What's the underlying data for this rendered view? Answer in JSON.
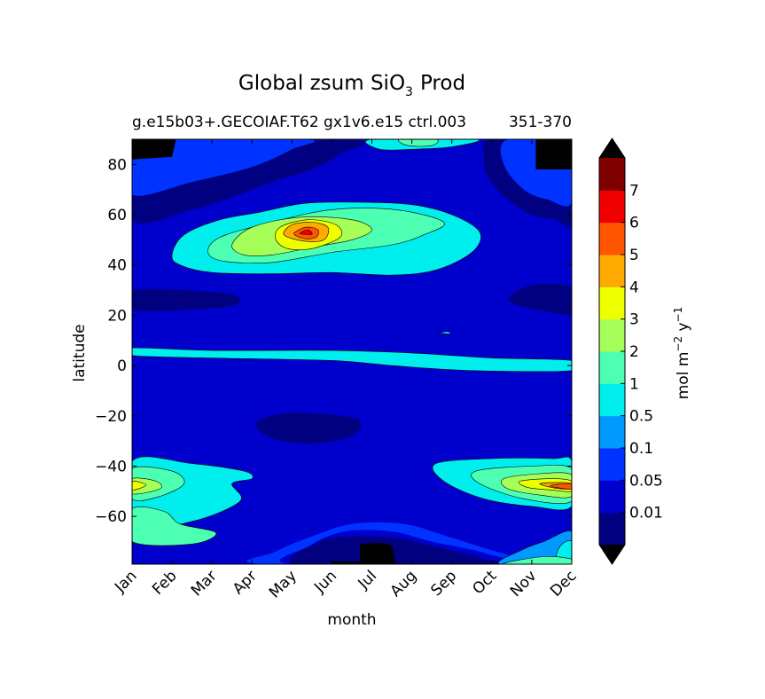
{
  "chart_data": {
    "type": "heatmap",
    "subtype": "filled-contour",
    "title": "Global zsum SiO",
    "title_subscript": "3",
    "title_suffix": "Prod",
    "subtitle": "g.e15b03+.GECOIAF.T62 gx1v6.e15 ctrl.003",
    "subtitle_right": "351-370",
    "xlabel": "month",
    "ylabel": "latitude",
    "x_categories": [
      "Jan",
      "Feb",
      "Mar",
      "Apr",
      "May",
      "Jun",
      "Jul",
      "Aug",
      "Sep",
      "Oct",
      "Nov",
      "Dec"
    ],
    "xlim": [
      0,
      11
    ],
    "ylim": [
      -79,
      90
    ],
    "y_ticks": [
      80,
      60,
      40,
      20,
      0,
      -20,
      -40,
      -60
    ],
    "y_tick_labels": [
      "80",
      "60",
      "40",
      "20",
      "0",
      "−20",
      "−40",
      "−60"
    ],
    "colorbar": {
      "label": "mol m",
      "label_sup1": "−2",
      "label_mid": " y",
      "label_sup2": "−1",
      "levels": [
        0,
        0.01,
        0.05,
        0.1,
        0.5,
        1,
        2,
        3,
        4,
        5,
        6,
        7,
        8
      ],
      "tick_labels": [
        "7",
        "6",
        "5",
        "4",
        "3",
        "2",
        "1",
        "0.5",
        "0.1",
        "0.05",
        "0.01"
      ],
      "colors": [
        "#000080",
        "#0000cd",
        "#0033ff",
        "#0099ff",
        "#00eeee",
        "#4dffb3",
        "#a6ff59",
        "#eeff00",
        "#ffaa00",
        "#ff5500",
        "#ee0000",
        "#800000"
      ],
      "under_color": "#000000",
      "over_color": "#000000",
      "extend": "both"
    },
    "contour_regions": [
      {
        "level": 1,
        "points": [
          [
            0,
            90
          ],
          [
            0,
            -79
          ],
          [
            11,
            -79
          ],
          [
            11,
            90
          ]
        ]
      },
      {
        "level": 0,
        "points": [
          [
            0,
            90
          ],
          [
            0,
            58
          ],
          [
            1.5,
            62
          ],
          [
            2.5,
            67
          ],
          [
            3.5,
            73
          ],
          [
            4.5,
            78
          ],
          [
            5.2,
            84
          ],
          [
            5.5,
            90
          ]
        ]
      },
      {
        "level": 2,
        "points": [
          [
            0,
            86
          ],
          [
            0,
            68
          ],
          [
            1.5,
            73
          ],
          [
            3,
            79
          ],
          [
            4,
            86
          ],
          [
            4.3,
            90
          ],
          [
            0,
            90
          ]
        ]
      },
      {
        "level": 0,
        "points": [
          [
            9,
            90
          ],
          [
            8.8,
            84
          ],
          [
            8.9,
            75
          ],
          [
            9.4,
            66
          ],
          [
            10,
            60
          ],
          [
            10.6,
            58
          ],
          [
            11,
            57
          ],
          [
            11,
            90
          ]
        ]
      },
      {
        "level": 2,
        "points": [
          [
            9.4,
            90
          ],
          [
            9.3,
            80
          ],
          [
            9.8,
            70
          ],
          [
            10.4,
            66
          ],
          [
            11,
            65
          ],
          [
            11,
            90
          ]
        ]
      },
      {
        "level": 4,
        "points": [
          [
            6,
            90
          ],
          [
            6.2,
            86
          ],
          [
            7,
            86
          ],
          [
            8,
            87
          ],
          [
            8.6,
            90
          ]
        ]
      },
      {
        "level": 5,
        "points": [
          [
            6.7,
            90
          ],
          [
            6.9,
            87.5
          ],
          [
            7.5,
            87.5
          ],
          [
            7.6,
            90
          ]
        ]
      },
      {
        "level": 0,
        "points": [
          [
            0,
            30
          ],
          [
            2.2,
            29
          ],
          [
            2.7,
            26
          ],
          [
            2.2,
            23
          ],
          [
            0,
            22
          ]
        ]
      },
      {
        "level": 0,
        "points": [
          [
            9.4,
            26
          ],
          [
            10,
            32
          ],
          [
            11,
            31
          ],
          [
            11,
            21
          ],
          [
            10.2,
            22
          ]
        ]
      },
      {
        "level": 4,
        "points": [
          [
            0,
            4
          ],
          [
            2,
            3
          ],
          [
            5,
            2
          ],
          [
            6.5,
            0
          ],
          [
            8.5,
            -2
          ],
          [
            11,
            -2
          ],
          [
            11,
            2
          ],
          [
            9,
            3
          ],
          [
            7,
            5
          ],
          [
            5,
            6
          ],
          [
            2,
            6
          ],
          [
            0,
            7
          ]
        ]
      },
      {
        "level": 0,
        "points": [
          [
            3.1,
            -23
          ],
          [
            3.8,
            -19
          ],
          [
            5,
            -19.5
          ],
          [
            5.7,
            -22
          ],
          [
            5.5,
            -28
          ],
          [
            4.5,
            -31
          ],
          [
            3.5,
            -29
          ]
        ]
      },
      {
        "level": 4,
        "points": [
          [
            1,
            44
          ],
          [
            1.3,
            52
          ],
          [
            2.2,
            58
          ],
          [
            3.2,
            61
          ],
          [
            4.3,
            64.5
          ],
          [
            5.6,
            65
          ],
          [
            7,
            64
          ],
          [
            8,
            60
          ],
          [
            8.7,
            53
          ],
          [
            8.5,
            45
          ],
          [
            7.6,
            38
          ],
          [
            6.5,
            36
          ],
          [
            5,
            37
          ],
          [
            3.5,
            36.5
          ],
          [
            2,
            37
          ],
          [
            1.2,
            40
          ]
        ]
      },
      {
        "level": 5,
        "points": [
          [
            1.9,
            45
          ],
          [
            2.2,
            51
          ],
          [
            3.5,
            57
          ],
          [
            5,
            62
          ],
          [
            6.6,
            62
          ],
          [
            7.8,
            57
          ],
          [
            7.3,
            52
          ],
          [
            6.5,
            48
          ],
          [
            5,
            45
          ],
          [
            3.5,
            41
          ],
          [
            2.3,
            41.5
          ]
        ]
      },
      {
        "level": 6,
        "points": [
          [
            2.5,
            48
          ],
          [
            3,
            55
          ],
          [
            4.2,
            59
          ],
          [
            5.5,
            58
          ],
          [
            6,
            54
          ],
          [
            5.5,
            50
          ],
          [
            4.5,
            47
          ],
          [
            3.5,
            44
          ],
          [
            2.8,
            44
          ]
        ]
      },
      {
        "level": 7,
        "points": [
          [
            3.6,
            50
          ],
          [
            3.7,
            55
          ],
          [
            4.4,
            58
          ],
          [
            5.1,
            56
          ],
          [
            5.2,
            51
          ],
          [
            4.5,
            46.5
          ],
          [
            3.9,
            46.5
          ]
        ]
      },
      {
        "level": 8,
        "points": [
          [
            3.8,
            52
          ],
          [
            4,
            56
          ],
          [
            4.5,
            57
          ],
          [
            4.9,
            55
          ],
          [
            4.8,
            50
          ],
          [
            4.3,
            49.5
          ]
        ]
      },
      {
        "level": 9,
        "points": [
          [
            4.05,
            52.5
          ],
          [
            4.35,
            55
          ],
          [
            4.65,
            54
          ],
          [
            4.6,
            51
          ],
          [
            4.3,
            50.5
          ]
        ]
      },
      {
        "level": 10,
        "points": [
          [
            4.2,
            52.5
          ],
          [
            4.4,
            54
          ],
          [
            4.5,
            52.2
          ]
        ]
      },
      {
        "level": 4,
        "points": [
          [
            0,
            -38
          ],
          [
            1.5,
            -39
          ],
          [
            2.8,
            -42
          ],
          [
            3,
            -45
          ],
          [
            2.5,
            -47
          ],
          [
            2.7,
            -54
          ],
          [
            1.5,
            -62
          ],
          [
            0,
            -64
          ]
        ]
      },
      {
        "level": 5,
        "points": [
          [
            0,
            -41
          ],
          [
            1,
            -42
          ],
          [
            1.3,
            -47
          ],
          [
            0.7,
            -52
          ],
          [
            0,
            -53
          ]
        ]
      },
      {
        "level": 6,
        "points": [
          [
            0,
            -45
          ],
          [
            0.6,
            -46
          ],
          [
            0.7,
            -49
          ],
          [
            0,
            -51
          ]
        ]
      },
      {
        "level": 7,
        "points": [
          [
            0,
            -46
          ],
          [
            0.35,
            -47.5
          ],
          [
            0,
            -49.5
          ]
        ]
      },
      {
        "level": 5,
        "points": [
          [
            0,
            -57
          ],
          [
            0.8,
            -58
          ],
          [
            1.2,
            -63
          ],
          [
            2.1,
            -66.5
          ],
          [
            1.5,
            -71
          ],
          [
            0,
            -70
          ]
        ]
      },
      {
        "level": 4,
        "points": [
          [
            7.6,
            -39
          ],
          [
            9,
            -37
          ],
          [
            10.5,
            -37
          ],
          [
            11,
            -38
          ],
          [
            11,
            -56
          ],
          [
            10,
            -56
          ],
          [
            8.8,
            -53
          ],
          [
            7.8,
            -46
          ]
        ]
      },
      {
        "level": 5,
        "points": [
          [
            8.6,
            -42
          ],
          [
            10,
            -40
          ],
          [
            11,
            -41
          ],
          [
            11,
            -54
          ],
          [
            9.8,
            -53
          ],
          [
            8.7,
            -47
          ]
        ]
      },
      {
        "level": 6,
        "points": [
          [
            9.3,
            -45
          ],
          [
            10.2,
            -43
          ],
          [
            11,
            -43.5
          ],
          [
            11,
            -52
          ],
          [
            10.2,
            -51.5
          ],
          [
            9.4,
            -49
          ]
        ]
      },
      {
        "level": 7,
        "points": [
          [
            9.7,
            -46
          ],
          [
            10.5,
            -45
          ],
          [
            11,
            -46
          ],
          [
            11,
            -50
          ],
          [
            10.5,
            -49.5
          ],
          [
            9.9,
            -48.5
          ]
        ]
      },
      {
        "level": 8,
        "points": [
          [
            10.2,
            -47
          ],
          [
            10.7,
            -46.5
          ],
          [
            11,
            -47
          ],
          [
            11,
            -49
          ],
          [
            10.6,
            -48.8
          ]
        ]
      },
      {
        "level": 9,
        "points": [
          [
            10.45,
            -47.8
          ],
          [
            11,
            -47
          ],
          [
            11,
            -49.2
          ]
        ]
      },
      {
        "level": 2,
        "points": [
          [
            3.3,
            -79
          ],
          [
            3.6,
            -74
          ],
          [
            4.5,
            -68
          ],
          [
            5.5,
            -63
          ],
          [
            6.8,
            -63
          ],
          [
            7.9,
            -68
          ],
          [
            9,
            -73.5
          ],
          [
            9.8,
            -77
          ],
          [
            9.9,
            -79
          ]
        ]
      },
      {
        "level": 1,
        "points": [
          [
            4,
            -79
          ],
          [
            4.4,
            -72
          ],
          [
            5.3,
            -66
          ],
          [
            6.5,
            -66
          ],
          [
            7.5,
            -70
          ],
          [
            8.8,
            -74.5
          ],
          [
            9.2,
            -79
          ]
        ]
      },
      {
        "level": 0,
        "points": [
          [
            4.2,
            -79
          ],
          [
            4.7,
            -70
          ],
          [
            5.5,
            -68
          ],
          [
            6.6,
            -68.5
          ],
          [
            7.6,
            -72
          ],
          [
            8.7,
            -76.5
          ],
          [
            9,
            -79
          ]
        ]
      },
      {
        "level": 3,
        "points": [
          [
            9.2,
            -79
          ],
          [
            9.8,
            -73
          ],
          [
            10.3,
            -70
          ],
          [
            11,
            -66
          ],
          [
            11,
            -79
          ]
        ]
      },
      {
        "level": 4,
        "points": [
          [
            10.6,
            -79
          ],
          [
            10.7,
            -72
          ],
          [
            11,
            -70
          ],
          [
            11,
            -79
          ]
        ]
      },
      {
        "level": 5,
        "points": [
          [
            9.3,
            -79
          ],
          [
            10.3,
            -76
          ],
          [
            11,
            -77
          ],
          [
            11,
            -79
          ]
        ]
      },
      {
        "level": -1,
        "points": [
          [
            5,
            -79
          ],
          [
            5,
            -78
          ],
          [
            5.7,
            -78
          ],
          [
            5.7,
            -71
          ],
          [
            6.2,
            -70.5
          ],
          [
            6.5,
            -71.5
          ],
          [
            6.6,
            -79
          ]
        ]
      },
      {
        "level": -1,
        "points": [
          [
            0,
            90
          ],
          [
            0,
            82
          ],
          [
            1,
            83
          ],
          [
            1.1,
            90
          ]
        ]
      },
      {
        "level": -1,
        "points": [
          [
            10.1,
            90
          ],
          [
            10.1,
            78
          ],
          [
            11,
            78
          ],
          [
            11,
            90
          ]
        ]
      },
      {
        "level": 4,
        "points": [
          [
            7.7,
            13
          ],
          [
            7.9,
            13.5
          ],
          [
            7.95,
            12.6
          ]
        ]
      }
    ]
  }
}
